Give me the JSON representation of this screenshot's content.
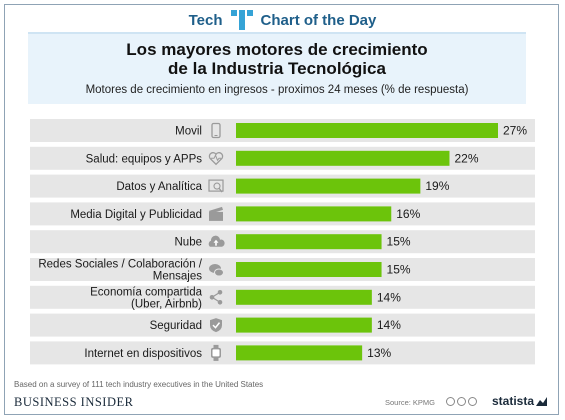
{
  "header": {
    "brand_left": "Tech",
    "brand_right": "Chart of the Day"
  },
  "chart_data": {
    "type": "bar",
    "orientation": "horizontal",
    "title": "Los mayores motores de crecimiento de la Industria Tecnológica",
    "title_lines": [
      "Los mayores motores de crecimiento",
      "de la Industria Tecnológica"
    ],
    "subtitle": "Motores de crecimiento en ingresos - proximos 24 meses (% de respuesta)",
    "categories": [
      "Movil",
      "Salud: equipos y APPs",
      "Datos y Analítica",
      "Media Digital y Publicidad",
      "Nube",
      "Redes Sociales / Colaboración / Mensajes",
      "Economía compartida (Uber, Airbnb)",
      "Seguridad",
      "Internet en dispositivos"
    ],
    "category_lines": [
      [
        "Movil"
      ],
      [
        "Salud: equipos y APPs"
      ],
      [
        "Datos y Analítica"
      ],
      [
        "Media Digital y Publicidad"
      ],
      [
        "Nube"
      ],
      [
        "Redes Sociales / Colaboración /",
        "Mensajes"
      ],
      [
        "Economía compartida",
        "(Uber, Airbnb)"
      ],
      [
        "Seguridad"
      ],
      [
        "Internet en dispositivos"
      ]
    ],
    "values": [
      27,
      22,
      19,
      16,
      15,
      15,
      14,
      14,
      13
    ],
    "value_labels": [
      "27%",
      "22%",
      "19%",
      "16%",
      "15%",
      "15%",
      "14%",
      "14%",
      "13%"
    ],
    "icons": [
      "phone-icon",
      "heartbeat-icon",
      "analytics-icon",
      "clapperboard-icon",
      "cloud-upload-icon",
      "chat-bubbles-icon",
      "share-icon",
      "shield-check-icon",
      "smartwatch-icon"
    ],
    "xlim": [
      0,
      27
    ],
    "grid": false,
    "colors": {
      "bar": "#6cc40b",
      "row_band": "#e6e6e6",
      "icon": "#9a9a9a"
    }
  },
  "footer": {
    "note": "Based on a survey of 111 tech industry executives in the United States",
    "publisher": "BUSINESS INSIDER",
    "source": "Source: KPMG",
    "statista": "statista"
  }
}
